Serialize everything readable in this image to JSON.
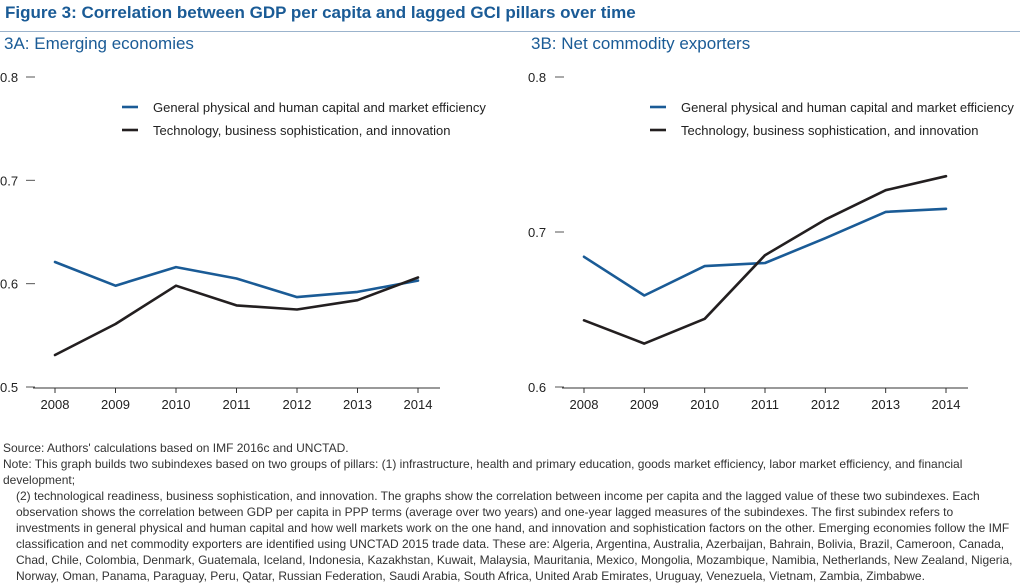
{
  "figure_title": "Figure 3: Correlation between GDP per capita and lagged GCI pillars over time",
  "colors": {
    "series1": "#1a5b96",
    "series2": "#231f20",
    "title": "#1a5b96"
  },
  "chart_data": [
    {
      "type": "line",
      "title": "3A: Emerging economies",
      "x": [
        "2008",
        "2009",
        "2010",
        "2011",
        "2012",
        "2013",
        "2014"
      ],
      "ylim": [
        0.5,
        0.8
      ],
      "yticks": [
        "0.5",
        "0.6",
        "0.7",
        "0.8"
      ],
      "legend_position": "top-center",
      "series": [
        {
          "name": "General physical and human capital and market efficiency",
          "values": [
            0.621,
            0.598,
            0.616,
            0.605,
            0.587,
            0.592,
            0.603
          ]
        },
        {
          "name": "Technology, business sophistication, and innovation",
          "values": [
            0.531,
            0.561,
            0.598,
            0.579,
            0.575,
            0.584,
            0.606
          ]
        }
      ]
    },
    {
      "type": "line",
      "title": "3B: Net commodity exporters",
      "x": [
        "2008",
        "2009",
        "2010",
        "2011",
        "2012",
        "2013",
        "2014"
      ],
      "ylim": [
        0.6,
        0.8
      ],
      "yticks": [
        "0.6",
        "0.7",
        "0.8"
      ],
      "legend_position": "top-center",
      "series": [
        {
          "name": "General physical and human capital and market efficiency",
          "values": [
            0.684,
            0.659,
            0.678,
            0.68,
            0.696,
            0.713,
            0.715
          ]
        },
        {
          "name": "Technology, business sophistication, and innovation",
          "values": [
            0.643,
            0.628,
            0.644,
            0.685,
            0.708,
            0.727,
            0.736
          ]
        }
      ]
    }
  ],
  "source": "Source: Authors' calculations based on IMF 2016c and UNCTAD.",
  "note_first": "Note: This graph builds two subindexes based on two groups of pillars: (1) infrastructure, health and primary education, goods market efficiency, labor market efficiency, and financial development;",
  "note_rest": "(2) technological readiness, business sophistication, and innovation. The graphs show the correlation between income per capita and the lagged value of these two subindexes. Each observation shows the correlation between GDP per capita in PPP terms (average over two years) and one-year lagged measures of the subindexes. The first subindex refers to investments in general physical and human capital and how well markets work on the one hand, and innovation and sophistication factors on the other. Emerging economies follow the IMF classification and net commodity exporters are identified using UNCTAD 2015 trade data. These are: Algeria, Argentina, Australia, Azerbaijan, Bahrain, Bolivia, Brazil, Cameroon, Canada, Chad, Chile, Colombia, Denmark, Guatemala, Iceland, Indonesia, Kazakhstan, Kuwait, Malaysia, Mauritania, Mexico, Mongolia, Mozambique, Namibia, Netherlands, New Zealand, Nigeria, Norway, Oman, Panama, Paraguay, Peru, Qatar, Russian Federation, Saudi Arabia, South Africa, United Arab Emirates, Uruguay, Venezuela, Vietnam, Zambia, Zimbabwe."
}
